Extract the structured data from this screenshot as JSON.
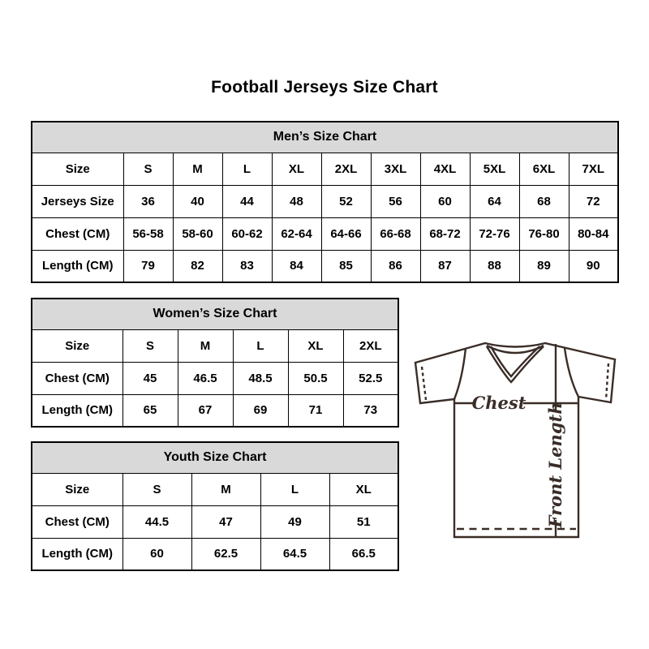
{
  "page": {
    "title": "Football Jerseys Size Chart"
  },
  "chart_data": [
    {
      "type": "table",
      "id": "mens",
      "title": "Men’s Size Chart",
      "rows": [
        [
          "Size",
          "S",
          "M",
          "L",
          "XL",
          "2XL",
          "3XL",
          "4XL",
          "5XL",
          "6XL",
          "7XL"
        ],
        [
          "Jerseys Size",
          "36",
          "40",
          "44",
          "48",
          "52",
          "56",
          "60",
          "64",
          "68",
          "72"
        ],
        [
          "Chest (CM)",
          "56-58",
          "58-60",
          "60-62",
          "62-64",
          "64-66",
          "66-68",
          "68-72",
          "72-76",
          "76-80",
          "80-84"
        ],
        [
          "Length (CM)",
          "79",
          "82",
          "83",
          "84",
          "85",
          "86",
          "87",
          "88",
          "89",
          "90"
        ]
      ]
    },
    {
      "type": "table",
      "id": "womens",
      "title": "Women’s Size Chart",
      "rows": [
        [
          "Size",
          "S",
          "M",
          "L",
          "XL",
          "2XL"
        ],
        [
          "Chest (CM)",
          "45",
          "46.5",
          "48.5",
          "50.5",
          "52.5"
        ],
        [
          "Length (CM)",
          "65",
          "67",
          "69",
          "71",
          "73"
        ]
      ]
    },
    {
      "type": "table",
      "id": "youth",
      "title": "Youth Size Chart",
      "rows": [
        [
          "Size",
          "S",
          "M",
          "L",
          "XL"
        ],
        [
          "Chest (CM)",
          "44.5",
          "47",
          "49",
          "51"
        ],
        [
          "Length (CM)",
          "60",
          "62.5",
          "64.5",
          "66.5"
        ]
      ]
    }
  ],
  "diagram": {
    "chest_label": "Chest",
    "front_length_label": "Front Length"
  },
  "colors": {
    "table_header_bg": "#d9d9d9",
    "table_border": "#000000",
    "jersey_line": "#3a2d27",
    "text": "#000000"
  }
}
